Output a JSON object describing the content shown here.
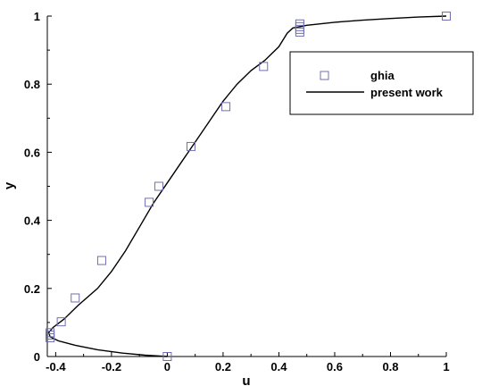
{
  "chart_data": {
    "type": "line",
    "title": "",
    "xlabel": "u",
    "ylabel": "y",
    "xlim": [
      -0.43,
      1.0
    ],
    "ylim": [
      0,
      1
    ],
    "x_ticks": [
      -0.4,
      -0.2,
      0,
      0.2,
      0.4,
      0.6,
      0.8,
      1
    ],
    "x_tick_labels": [
      "-0.4",
      "-0.2",
      "0",
      "0.2",
      "0.4",
      "0.6",
      "0.8",
      "1"
    ],
    "y_ticks": [
      0,
      0.2,
      0.4,
      0.6,
      0.8,
      1
    ],
    "y_tick_labels": [
      "0",
      "0.2",
      "0.4",
      "0.6",
      "0.8",
      "1"
    ],
    "grid": false,
    "legend_position": "top-right",
    "series": [
      {
        "name": "ghia",
        "style": "square-marker",
        "color": "#6f6fb0",
        "points": [
          [
            0.0,
            0.0
          ],
          [
            -0.42,
            0.055
          ],
          [
            -0.42,
            0.063
          ],
          [
            -0.42,
            0.07
          ],
          [
            -0.38,
            0.102
          ],
          [
            -0.33,
            0.172
          ],
          [
            -0.235,
            0.282
          ],
          [
            -0.065,
            0.453
          ],
          [
            -0.03,
            0.5
          ],
          [
            0.085,
            0.617
          ],
          [
            0.21,
            0.734
          ],
          [
            0.345,
            0.852
          ],
          [
            0.475,
            0.953
          ],
          [
            0.475,
            0.961
          ],
          [
            0.475,
            0.969
          ],
          [
            0.475,
            0.977
          ],
          [
            1.0,
            1.0
          ]
        ]
      },
      {
        "name": "present work",
        "style": "line",
        "color": "#000000",
        "points": [
          [
            0.0,
            0.0
          ],
          [
            -0.08,
            0.004
          ],
          [
            -0.16,
            0.01
          ],
          [
            -0.25,
            0.02
          ],
          [
            -0.33,
            0.033
          ],
          [
            -0.39,
            0.046
          ],
          [
            -0.42,
            0.058
          ],
          [
            -0.425,
            0.07
          ],
          [
            -0.41,
            0.085
          ],
          [
            -0.37,
            0.11
          ],
          [
            -0.32,
            0.15
          ],
          [
            -0.25,
            0.2
          ],
          [
            -0.2,
            0.25
          ],
          [
            -0.15,
            0.31
          ],
          [
            -0.1,
            0.38
          ],
          [
            -0.05,
            0.45
          ],
          [
            0.0,
            0.51
          ],
          [
            0.05,
            0.57
          ],
          [
            0.1,
            0.63
          ],
          [
            0.15,
            0.69
          ],
          [
            0.2,
            0.75
          ],
          [
            0.25,
            0.8
          ],
          [
            0.3,
            0.84
          ],
          [
            0.35,
            0.87
          ],
          [
            0.4,
            0.91
          ],
          [
            0.43,
            0.95
          ],
          [
            0.45,
            0.965
          ],
          [
            0.5,
            0.973
          ],
          [
            0.6,
            0.982
          ],
          [
            0.7,
            0.988
          ],
          [
            0.8,
            0.993
          ],
          [
            0.9,
            0.997
          ],
          [
            1.0,
            1.0
          ]
        ]
      }
    ]
  }
}
